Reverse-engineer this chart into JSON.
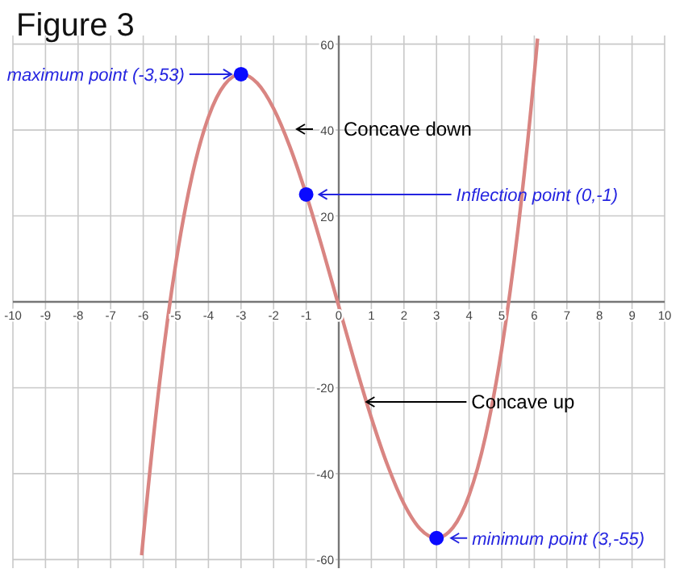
{
  "chart_data": {
    "type": "line",
    "title": "Figure 3",
    "xlim": [
      -10,
      10
    ],
    "ylim": [
      -62,
      62
    ],
    "xticks": [
      -10,
      -9,
      -8,
      -7,
      -6,
      -5,
      -4,
      -3,
      -2,
      -1,
      0,
      1,
      2,
      3,
      4,
      5,
      6,
      7,
      8,
      9,
      10
    ],
    "yticks": [
      -60,
      -40,
      -20,
      20,
      40,
      60
    ],
    "grid": true,
    "series": [
      {
        "color": "#d98582",
        "marker": "none",
        "x": [
          -6.05,
          -6,
          -5.5,
          -5,
          -4.5,
          -4,
          -3.5,
          -3,
          -2.5,
          -2,
          -1.5,
          -1,
          -0.5,
          0,
          0.5,
          1,
          1.5,
          2,
          2.5,
          3,
          3.5,
          4,
          4.5,
          5,
          5.5,
          6,
          6.05,
          6.1
        ],
        "values": [
          -59,
          -55,
          -18.9,
          9,
          29.4,
          43,
          50.6,
          53,
          50.9,
          45,
          36.1,
          25,
          12.4,
          -1,
          -14.4,
          -27,
          -38.1,
          -47,
          -52.9,
          -55,
          -52.6,
          -45,
          -31.4,
          -11,
          16.9,
          53,
          57.1,
          61.3
        ]
      },
      {
        "type": "scatter",
        "color": "#0a0aff",
        "marker": "circle",
        "x": [
          -3,
          -1,
          3
        ],
        "values": [
          53,
          25,
          -55
        ]
      }
    ],
    "annotations": [
      {
        "text": "maximum point (-3,53)",
        "x": -3,
        "y": 53
      },
      "Concave down",
      {
        "text": "Inflection point (0,-1)",
        "x": -1,
        "y": 25
      },
      {
        "text": "Concave up",
        "x": 0.85,
        "y": -23.3
      },
      {
        "text": "minimum point (3,-55)",
        "x": 3,
        "y": -55
      }
    ]
  }
}
